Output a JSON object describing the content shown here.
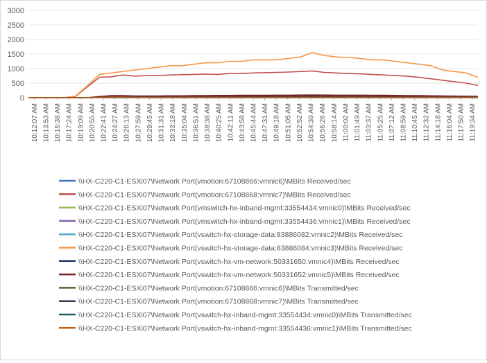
{
  "chart_data": {
    "type": "line",
    "title": "",
    "xlabel": "",
    "ylabel": "",
    "ylim": [
      0,
      3000
    ],
    "yticks": [
      0,
      500,
      1000,
      1500,
      2000,
      2500,
      3000
    ],
    "grid": "horizontal",
    "legend_position": "bottom",
    "x_tick_labels": [
      "10:12:07 AM",
      "10:13:53 AM",
      "10:15:38 AM",
      "10:17:24 AM",
      "10:19:09 AM",
      "10:20:55 AM",
      "10:22:41 AM",
      "10:24:27 AM",
      "10:26:13 AM",
      "10:27:59 AM",
      "10:29:45 AM",
      "10:31:31 AM",
      "10:33:18 AM",
      "10:35:04 AM",
      "10:36:51 AM",
      "10:38:38 AM",
      "10:40:25 AM",
      "10:42:11 AM",
      "10:43:58 AM",
      "10:45:44 AM",
      "10:47:31 AM",
      "10:49:18 AM",
      "10:51:05 AM",
      "10:52:52 AM",
      "10:54:39 AM",
      "10:56:26 AM",
      "10:58:14 AM",
      "11:00:02 AM",
      "11:01:49 AM",
      "11:03:37 AM",
      "11:05:25 AM",
      "11:07:12 AM",
      "11:08:59 AM",
      "11:10:45 AM",
      "11:12:32 AM",
      "11:14:18 AM",
      "11:16:04 AM",
      "11:17:50 AM",
      "11:19:34 AM"
    ],
    "series": [
      {
        "name": "\\\\HX-C220-C1-ESXi07\\Network Port(vmotion:67108866:vmnic6)\\MBits Received/sec",
        "color": "#4472c4",
        "values": [
          0,
          0,
          0,
          0,
          0,
          0,
          10,
          20,
          15,
          10,
          8,
          5,
          5,
          5,
          5,
          5,
          5,
          5,
          5,
          5,
          5,
          5,
          5,
          5,
          5,
          5,
          5,
          5,
          5,
          5,
          5,
          5,
          5,
          5,
          5,
          5,
          5,
          5,
          5
        ]
      },
      {
        "name": "\\\\HX-C220-C1-ESXi07\\Network Port(vmotion:67108868:vmnic7)\\MBits Received/sec",
        "color": "#c0504d",
        "values": [
          0,
          0,
          0,
          0,
          50,
          380,
          700,
          720,
          780,
          740,
          760,
          760,
          780,
          790,
          800,
          810,
          800,
          830,
          830,
          850,
          860,
          870,
          880,
          900,
          920,
          870,
          850,
          830,
          820,
          800,
          780,
          760,
          740,
          700,
          650,
          600,
          550,
          500,
          420
        ]
      },
      {
        "name": "\\\\HX-C220-C1-ESXi07\\Network Port(vmswitch-hx-inband-mgmt:33554434:vmnic0)\\MBits Received/sec",
        "color": "#9bbb59",
        "values": [
          0,
          0,
          0,
          0,
          0,
          0,
          5,
          5,
          5,
          5,
          5,
          5,
          5,
          5,
          5,
          5,
          5,
          5,
          5,
          5,
          5,
          5,
          5,
          5,
          5,
          5,
          5,
          5,
          5,
          5,
          5,
          5,
          5,
          5,
          5,
          5,
          5,
          5,
          5
        ]
      },
      {
        "name": "\\\\HX-C220-C1-ESXi07\\Network Port(vmswitch-hx-inband-mgmt:33554436:vmnic1)\\MBits Received/sec",
        "color": "#8064a2",
        "values": [
          0,
          0,
          0,
          0,
          0,
          0,
          10,
          15,
          15,
          10,
          10,
          10,
          10,
          10,
          10,
          10,
          10,
          10,
          10,
          10,
          10,
          10,
          10,
          10,
          10,
          10,
          10,
          10,
          10,
          10,
          10,
          10,
          10,
          10,
          10,
          10,
          10,
          10,
          10
        ]
      },
      {
        "name": "\\\\HX-C220-C1-ESXi07\\Network Port(vswitch-hx-storage-data:83886082:vmnic2)\\MBits Received/sec",
        "color": "#4bacc6",
        "values": [
          0,
          0,
          0,
          0,
          0,
          0,
          20,
          30,
          30,
          25,
          25,
          25,
          25,
          25,
          25,
          25,
          25,
          25,
          25,
          25,
          25,
          25,
          25,
          25,
          25,
          25,
          25,
          25,
          25,
          25,
          25,
          25,
          25,
          25,
          25,
          25,
          25,
          25,
          25
        ]
      },
      {
        "name": "\\\\HX-C220-C1-ESXi07\\Network Port(vswitch-hx-storage-data:83886084:vmnic3)\\MBits Received/sec",
        "color": "#f79646",
        "values": [
          0,
          0,
          0,
          0,
          60,
          420,
          800,
          850,
          900,
          950,
          1000,
          1050,
          1100,
          1100,
          1150,
          1200,
          1200,
          1250,
          1250,
          1300,
          1300,
          1300,
          1350,
          1400,
          1550,
          1450,
          1400,
          1380,
          1350,
          1300,
          1300,
          1250,
          1200,
          1150,
          1100,
          950,
          900,
          850,
          700
        ]
      },
      {
        "name": "\\\\HX-C220-C1-ESXi07\\Network Port(vswitch-hx-vm-network:50331650:vmnic4)\\MBits Received/sec",
        "color": "#1f3864",
        "values": [
          0,
          0,
          0,
          0,
          0,
          0,
          30,
          60,
          60,
          50,
          50,
          50,
          55,
          55,
          55,
          55,
          60,
          60,
          60,
          60,
          65,
          65,
          65,
          70,
          70,
          70,
          70,
          70,
          70,
          70,
          65,
          65,
          60,
          60,
          55,
          50,
          50,
          45,
          40
        ]
      },
      {
        "name": "\\\\HX-C220-C1-ESXi07\\Network Port(vswitch-hx-vm-network:50331652:vmnic5)\\MBits Received/sec",
        "color": "#7f1f1f",
        "values": [
          0,
          0,
          0,
          0,
          0,
          0,
          40,
          70,
          70,
          60,
          60,
          60,
          65,
          65,
          70,
          70,
          75,
          75,
          80,
          80,
          80,
          85,
          85,
          90,
          90,
          90,
          85,
          85,
          85,
          80,
          80,
          75,
          70,
          70,
          65,
          60,
          55,
          50,
          45
        ]
      },
      {
        "name": "\\\\HX-C220-C1-ESXi07\\Network Port(vmotion:67108866:vmnic6)\\MBits Transmitted/sec",
        "color": "#4f6228",
        "values": [
          0,
          0,
          0,
          0,
          0,
          0,
          5,
          5,
          5,
          5,
          5,
          5,
          5,
          5,
          5,
          5,
          5,
          5,
          5,
          5,
          5,
          5,
          5,
          5,
          5,
          5,
          5,
          5,
          5,
          5,
          5,
          5,
          5,
          5,
          5,
          5,
          5,
          5,
          5
        ]
      },
      {
        "name": "\\\\HX-C220-C1-ESXi07\\Network Port(vmotion:67108868:vmnic7)\\MBits Transmitted/sec",
        "color": "#3f3151",
        "values": [
          0,
          0,
          0,
          0,
          0,
          0,
          20,
          40,
          40,
          35,
          35,
          35,
          35,
          35,
          35,
          35,
          35,
          35,
          35,
          35,
          35,
          35,
          35,
          35,
          35,
          35,
          35,
          35,
          35,
          35,
          35,
          35,
          35,
          35,
          35,
          35,
          35,
          35,
          35
        ]
      },
      {
        "name": "\\\\HX-C220-C1-ESXi07\\Network Port(vswitch-hx-inband-mgmt:33554434:vmnic0)\\MBits Transmitted/sec",
        "color": "#215968",
        "values": [
          0,
          0,
          0,
          0,
          0,
          0,
          5,
          5,
          5,
          5,
          5,
          5,
          5,
          5,
          5,
          5,
          5,
          5,
          5,
          5,
          5,
          5,
          5,
          5,
          5,
          5,
          5,
          5,
          5,
          5,
          5,
          5,
          5,
          5,
          5,
          5,
          5,
          5,
          5
        ]
      },
      {
        "name": "\\\\HX-C220-C1-ESXi07\\Network Port(vswitch-hx-inband-mgmt:33554436:vmnic1)\\MBits Transmitted/sec",
        "color": "#c55a11",
        "values": [
          0,
          0,
          0,
          0,
          0,
          0,
          10,
          20,
          20,
          15,
          15,
          15,
          15,
          15,
          15,
          15,
          15,
          15,
          15,
          15,
          15,
          15,
          15,
          15,
          15,
          15,
          15,
          15,
          15,
          15,
          15,
          15,
          15,
          15,
          15,
          15,
          15,
          15,
          15
        ]
      }
    ]
  }
}
